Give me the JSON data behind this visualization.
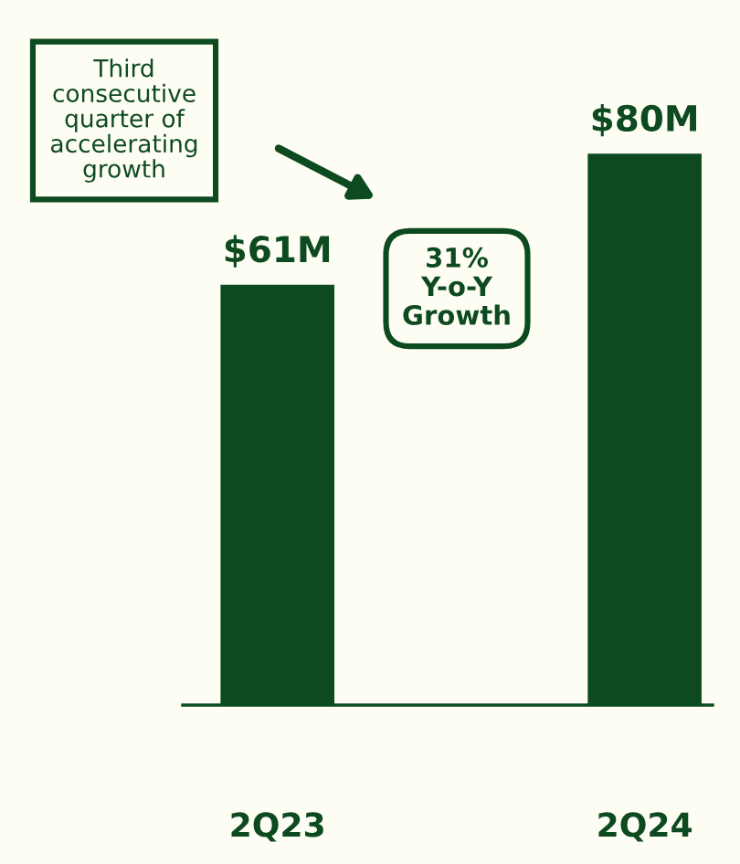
{
  "chart_data": {
    "type": "bar",
    "categories": [
      "2Q23",
      "2Q24"
    ],
    "values": [
      61,
      80
    ],
    "value_labels": [
      "$61M",
      "$80M"
    ],
    "color": "#0d4a1f",
    "annotations": [
      "Third\nconsecutive\nquarter of\naccelerating\ngrowth",
      "31%\nY-o-Y\nGrowth"
    ],
    "grid": false
  }
}
